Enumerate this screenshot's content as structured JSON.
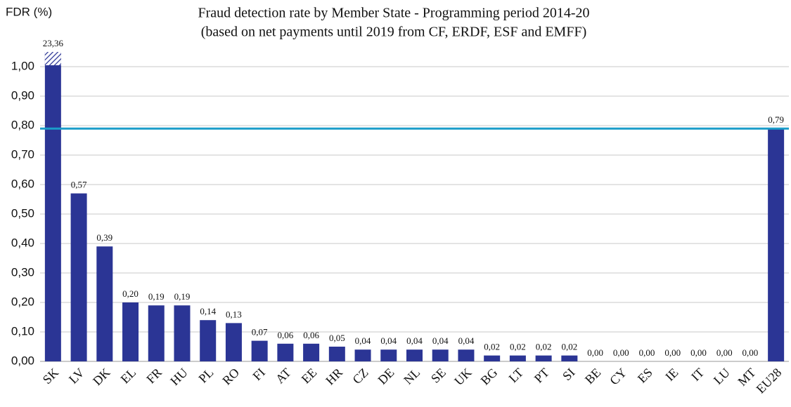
{
  "chart_data": {
    "type": "bar",
    "title": "Fraud detection rate by Member State - Programming period 2014-20",
    "subtitle": "(based on net payments until 2019 from CF, ERDF, ESF and EMFF)",
    "y_label": "FDR (%)",
    "categories": [
      "SK",
      "LV",
      "DK",
      "EL",
      "FR",
      "HU",
      "PL",
      "RO",
      "FI",
      "AT",
      "EE",
      "HR",
      "CZ",
      "DE",
      "NL",
      "SE",
      "UK",
      "BG",
      "LT",
      "PT",
      "SI",
      "BE",
      "CY",
      "ES",
      "IE",
      "IT",
      "LU",
      "MT",
      "EU28"
    ],
    "values": [
      23.36,
      0.57,
      0.39,
      0.2,
      0.19,
      0.19,
      0.14,
      0.13,
      0.07,
      0.06,
      0.06,
      0.05,
      0.04,
      0.04,
      0.04,
      0.04,
      0.04,
      0.02,
      0.02,
      0.02,
      0.02,
      0,
      0,
      0,
      0,
      0,
      0,
      0,
      0.79
    ],
    "value_labels": [
      "23,36",
      "0,57",
      "0,39",
      "0,20",
      "0,19",
      "0,19",
      "0,14",
      "0,13",
      "0,07",
      "0,06",
      "0,06",
      "0,05",
      "0,04",
      "0,04",
      "0,04",
      "0,04",
      "0,04",
      "0,02",
      "0,02",
      "0,02",
      "0,02",
      "0,00",
      "0,00",
      "0,00",
      "0,00",
      "0,00",
      "0,00",
      "0,00",
      "0,79"
    ],
    "color": "#2b3595",
    "reference_line": {
      "value": 0.79,
      "color": "#1b9dc9"
    },
    "ylim": [
      0,
      1.05
    ],
    "yticks": [
      {
        "value": 0,
        "label": "0,00"
      },
      {
        "value": 0.1,
        "label": "0,10"
      },
      {
        "value": 0.2,
        "label": "0,20"
      },
      {
        "value": 0.3,
        "label": "0,30"
      },
      {
        "value": 0.4,
        "label": "0,40"
      },
      {
        "value": 0.5,
        "label": "0,50"
      },
      {
        "value": 0.6,
        "label": "0,60"
      },
      {
        "value": 0.7,
        "label": "0,70"
      },
      {
        "value": 0.8,
        "label": "0,80"
      },
      {
        "value": 0.9,
        "label": "0,90"
      },
      {
        "value": 1,
        "label": "1,00"
      }
    ],
    "grid": true
  }
}
